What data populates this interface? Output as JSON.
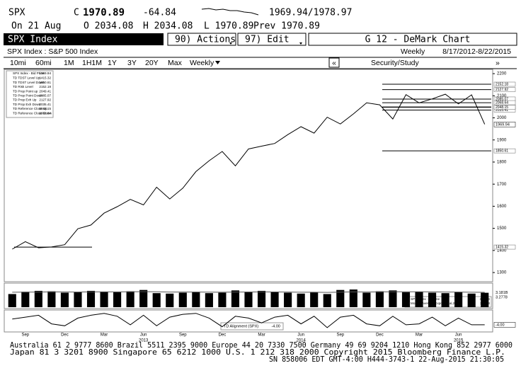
{
  "header": {
    "ticker": "SPX",
    "close_label": "C",
    "close": "1970.89",
    "change": "-64.84",
    "bid_ask": "1969.94/1978.97",
    "date": "On 21 Aug",
    "open": "O 2034.08",
    "high": "H 2034.08",
    "low": "L 1970.89",
    "prev": "Prev 1970.89"
  },
  "toolbar": {
    "security": "SPX Index",
    "actions": "90) Actions",
    "edit": "97) Edit",
    "screen": "G 12 - DeMark Chart",
    "description": "SPX Index : S&P 500 Index",
    "period": "Weekly",
    "range": "8/17/2012-8/22/2015",
    "buttons": [
      "10mi",
      "60mi",
      "1M",
      "1H1M",
      "1Y",
      "3Y",
      "20Y",
      "Max"
    ],
    "frequency": "Weekly",
    "nav_left": "«",
    "study": "Security/Study",
    "nav_right": "»"
  },
  "chart_data": [
    {
      "type": "line",
      "categories": [
        null,
        "Sep",
        null,
        null,
        "Dec",
        null,
        null,
        "Mar",
        null,
        null,
        "Jun",
        null,
        null,
        "Sep",
        null,
        null,
        "Dec",
        null,
        null,
        "Mar",
        null,
        null,
        "Jun",
        null,
        null,
        "Sep",
        null,
        null,
        "Dec",
        null,
        null,
        "Mar",
        null,
        null,
        "Jun",
        null,
        null
      ],
      "years": [
        "2013",
        "2014",
        "2015"
      ],
      "series": [
        {
          "name": "SPX Index - Bid Price",
          "color": "#000000",
          "last_value": 1969.94,
          "values": [
            1406,
            1440,
            1412,
            1416,
            1426,
            1498,
            1515,
            1569,
            1598,
            1631,
            1606,
            1686,
            1633,
            1682,
            1757,
            1806,
            1848,
            1783,
            1859,
            1872,
            1884,
            1924,
            1960,
            1931,
            2003,
            1972,
            2018,
            2068,
            2059,
            1995,
            2105,
            2068,
            2086,
            2107,
            2063,
            2104,
            1971
          ]
        }
      ],
      "levels": [
        {
          "name": "TD TDST Level Up",
          "value": 1415.32
        },
        {
          "name": "TD TDST Level Down",
          "value": 1850.61
        },
        {
          "name": "TD Risk Level",
          "value": 2152.18
        },
        {
          "name": "TD Prop Point up",
          "value": 2049.41
        },
        {
          "name": "TD Prop Point Down",
          "value": 2085.07
        },
        {
          "name": "TD Prop Exh Up",
          "value": 2127.92
        },
        {
          "name": "TD Prop Exh Down",
          "value": 2035.41
        },
        {
          "name": "TD Reference Close Up",
          "value": 2048.15
        },
        {
          "name": "TD Reference Close Down",
          "value": 2068.64
        }
      ],
      "ylim": [
        1265,
        2213
      ],
      "yticks": [
        1300,
        1400,
        1500,
        1600,
        1700,
        1800,
        1900,
        2000,
        2100,
        2200
      ]
    },
    {
      "type": "bar",
      "ylim": [
        0,
        5
      ],
      "series": [
        {
          "name": "SPX Index - Volume",
          "color": "#000000",
          "last_value_label": "3.181B",
          "values": [
            2.9,
            3.4,
            3.6,
            3.5,
            3.2,
            3.3,
            3.6,
            3.4,
            3.3,
            3.5,
            3.8,
            3.1,
            3.0,
            3.2,
            3.3,
            3.1,
            3.2,
            3.7,
            3.4,
            3.6,
            3.3,
            3.2,
            3.0,
            3.3,
            2.9,
            3.8,
            3.9,
            3.2,
            3.5,
            3.7,
            3.3,
            3.4,
            3.2,
            3.1,
            3.3,
            3.0,
            3.181
          ]
        },
        {
          "name": "Moving Average(Exponential,21)",
          "color": "#555555",
          "values": [
            3.3,
            3.32,
            3.35,
            3.37,
            3.36,
            3.35,
            3.38,
            3.38,
            3.37,
            3.39,
            3.42,
            3.39,
            3.35,
            3.34,
            3.34,
            3.31,
            3.3,
            3.34,
            3.35,
            3.37,
            3.36,
            3.34,
            3.3,
            3.3,
            3.26,
            3.31,
            3.37,
            3.35,
            3.37,
            3.4,
            3.39,
            3.39,
            3.37,
            3.34,
            3.34,
            3.3,
            3.2778
          ]
        }
      ]
    },
    {
      "type": "line",
      "ylim": [
        -10,
        10
      ],
      "series": [
        {
          "name": "TD Alignment (SPX)",
          "color": "#000000",
          "last_value_label": "-4.00",
          "values": [
            2,
            4,
            6,
            -3,
            -5,
            3,
            6,
            8,
            5,
            -4,
            6,
            -5,
            4,
            7,
            8,
            3,
            -6,
            5,
            3,
            -2,
            4,
            6,
            -3,
            5,
            -7,
            4,
            6,
            -3,
            -5,
            5,
            -4,
            -3,
            4,
            -5,
            3,
            -4,
            -4
          ]
        }
      ]
    }
  ],
  "footer": {
    "lines": [
      "Australia 61 2 9777 8600 Brazil 5511 2395 9000 Europe 44 20 7330 7500 Germany 49 69 9204 1210 Hong Kong 852 2977 6000",
      "Japan 81 3 3201 8900         Singapore 65 6212 1000         U.S. 1 212 318 2000         Copyright 2015 Bloomberg Finance L.P.",
      "SN 858006 EDT  GMT-4:00 H444-3743-1 22-Aug-2015 21:30:05"
    ]
  }
}
